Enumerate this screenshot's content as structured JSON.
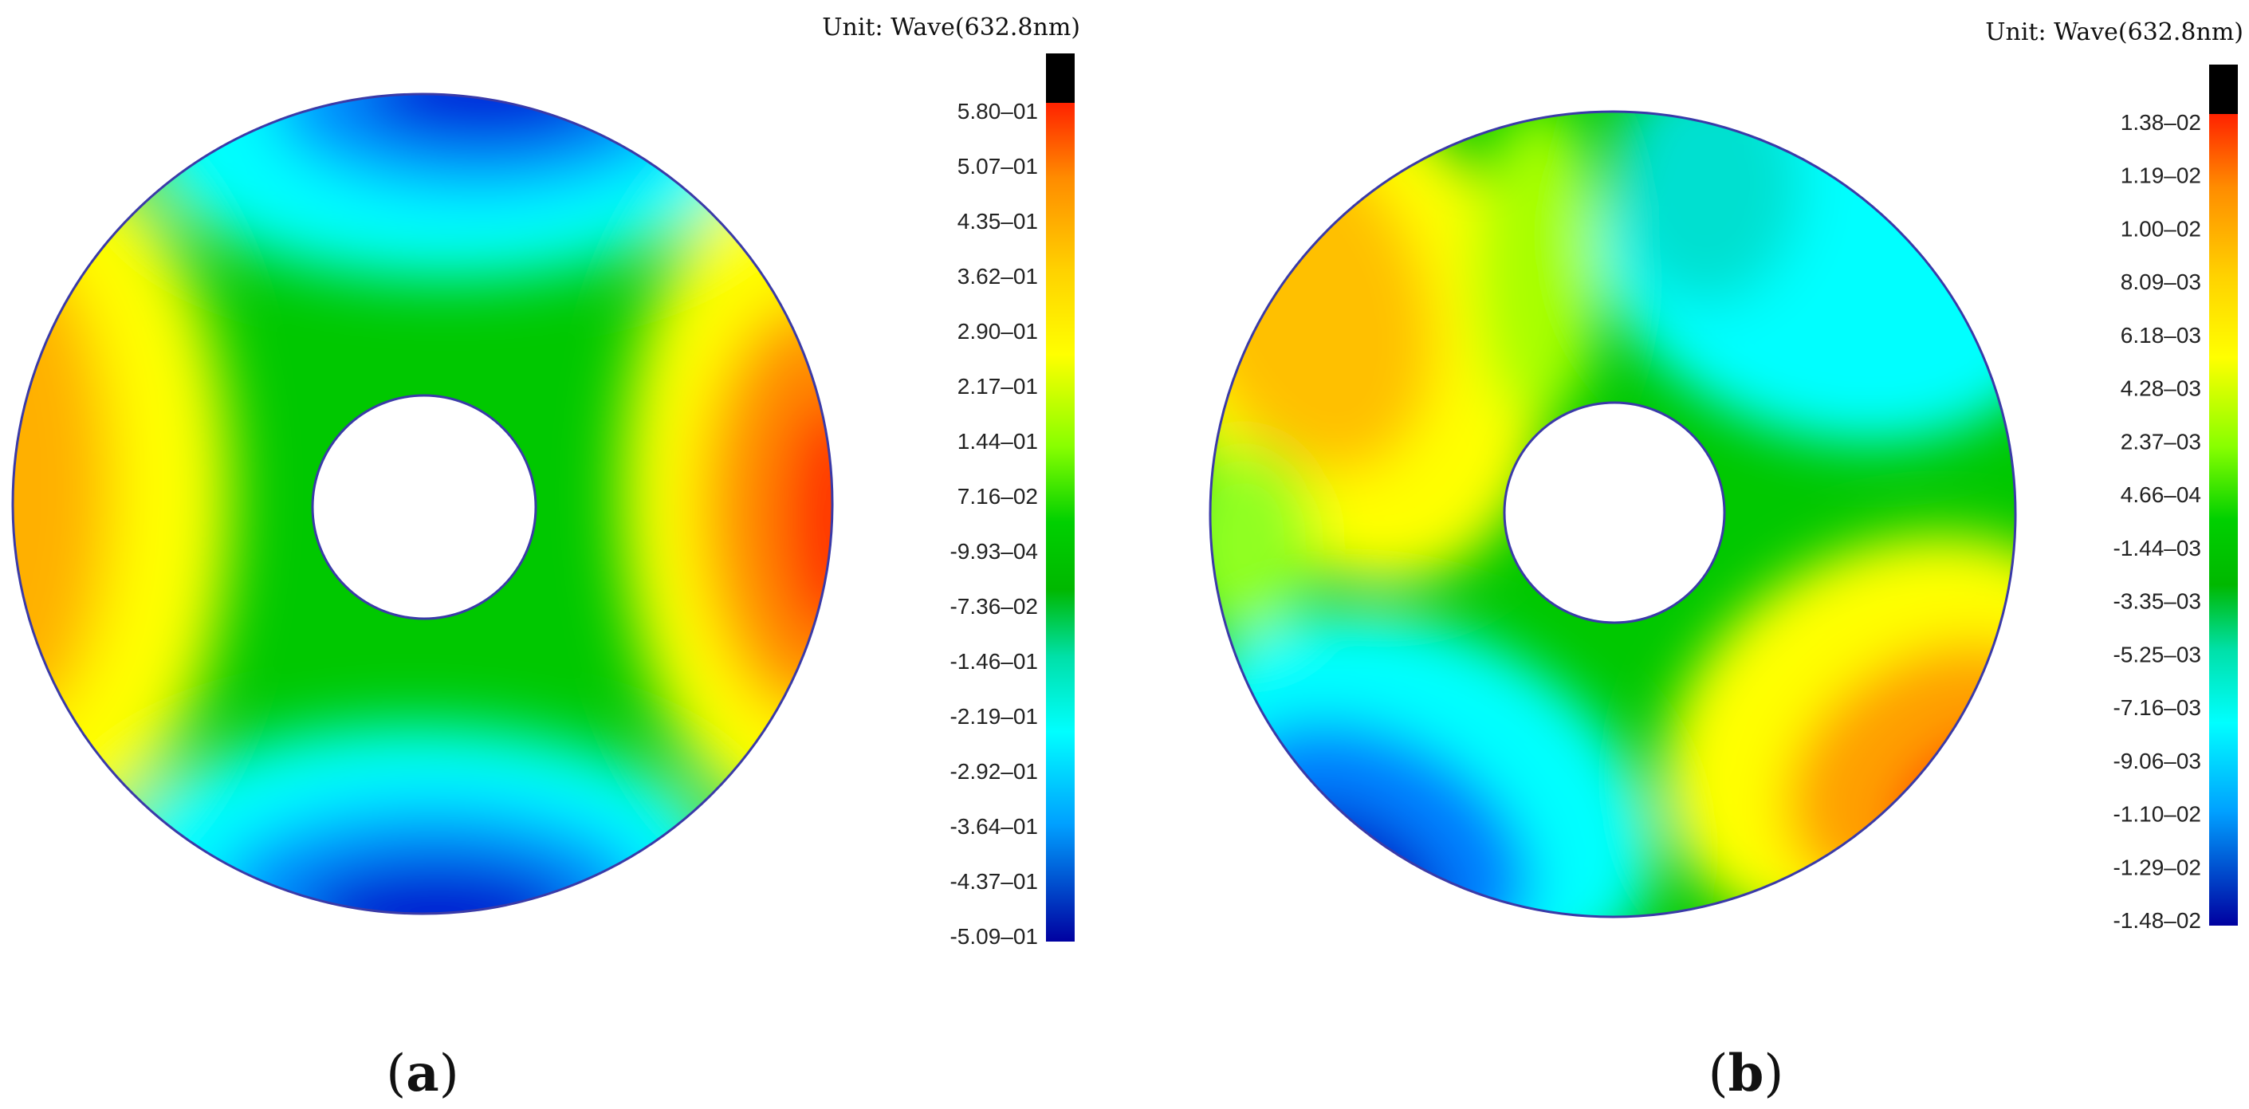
{
  "chart_data": [
    {
      "type": "heatmap",
      "panel_label": "(a)",
      "panel_letter": "a",
      "colorbar_title": "Unit: Wave(632.8nm)",
      "colorbar_ticks": [
        "5.80–01",
        "5.07–01",
        "4.35–01",
        "3.62–01",
        "2.90–01",
        "2.17–01",
        "1.44–01",
        "7.16–02",
        "-9.93–04",
        "-7.36–02",
        "-1.46–01",
        "-2.19–01",
        "-2.92–01",
        "-3.64–01",
        "-4.37–01",
        "-5.09–01"
      ],
      "value_range": [
        -0.509,
        0.58
      ],
      "pattern": "astigmatism (saddle): high at left and right edges, low at top and bottom",
      "colors": {
        "high": "#e8200a",
        "low": "#0a12c8",
        "outline": "#3a3aa8"
      }
    },
    {
      "type": "heatmap",
      "panel_label": "(b)",
      "panel_letter": "b",
      "colorbar_title": "Unit: Wave(632.8nm)",
      "colorbar_ticks": [
        "1.38–02",
        "1.19–02",
        "1.00–02",
        "8.09–03",
        "6.18–03",
        "4.28–03",
        "2.37–03",
        "4.66–04",
        "-1.44–03",
        "-3.35–03",
        "-5.25–03",
        "-7.16–03",
        "-9.06–03",
        "-1.10–02",
        "-1.29–02",
        "-1.48–02"
      ],
      "value_range": [
        -0.0148,
        0.0138
      ],
      "pattern": "trefoil-like: high lobes at upper-left and lower-right, low lobes at lower-left and upper-right",
      "colors": {
        "high": "#e8200a",
        "low": "#0a12c8",
        "outline": "#3a3aa8"
      }
    }
  ]
}
